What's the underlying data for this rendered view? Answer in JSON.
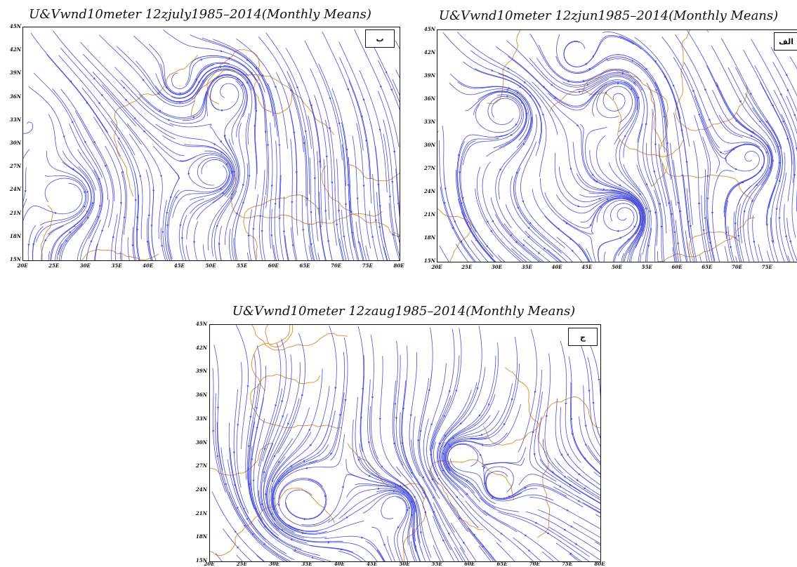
{
  "panels": [
    {
      "id": "july",
      "title": "U&Vwnd10meter 12zjuly1985–2014(Monthly Means)",
      "badge": "ب",
      "lat_labels": [
        "45N",
        "42N",
        "39N",
        "36N",
        "33N",
        "30N",
        "27N",
        "24N",
        "21N",
        "18N",
        "15N"
      ],
      "lon_labels": [
        "20E",
        "25E",
        "30E",
        "35E",
        "40E",
        "45E",
        "50E",
        "55E",
        "60E",
        "65E",
        "70E",
        "75E",
        "80E"
      ]
    },
    {
      "id": "june",
      "title": "U&Vwnd10meter 12zjun1985–2014(Monthly Means)",
      "badge": "الف",
      "lat_labels": [
        "45N",
        "42N",
        "39N",
        "36N",
        "33N",
        "30N",
        "27N",
        "24N",
        "21N",
        "18N",
        "15N"
      ],
      "lon_labels": [
        "20E",
        "25E",
        "30E",
        "35E",
        "40E",
        "45E",
        "50E",
        "55E",
        "60E",
        "65E",
        "70E",
        "75E"
      ]
    },
    {
      "id": "august",
      "title": "U&Vwnd10meter 12zaug1985–2014(Monthly Means)",
      "badge": "ج",
      "lat_labels": [
        "45N",
        "42N",
        "39N",
        "36N",
        "33N",
        "30N",
        "27N",
        "24N",
        "21N",
        "18N",
        "15N"
      ],
      "lon_labels": [
        "20E",
        "25E",
        "30E",
        "35E",
        "40E",
        "45E",
        "50E",
        "55E",
        "60E",
        "65E",
        "70E",
        "75E",
        "80E"
      ]
    }
  ],
  "style": {
    "streamline_color": "#4a4fd8",
    "coastline_color": "#e0913a",
    "frame_color": "#111111"
  }
}
